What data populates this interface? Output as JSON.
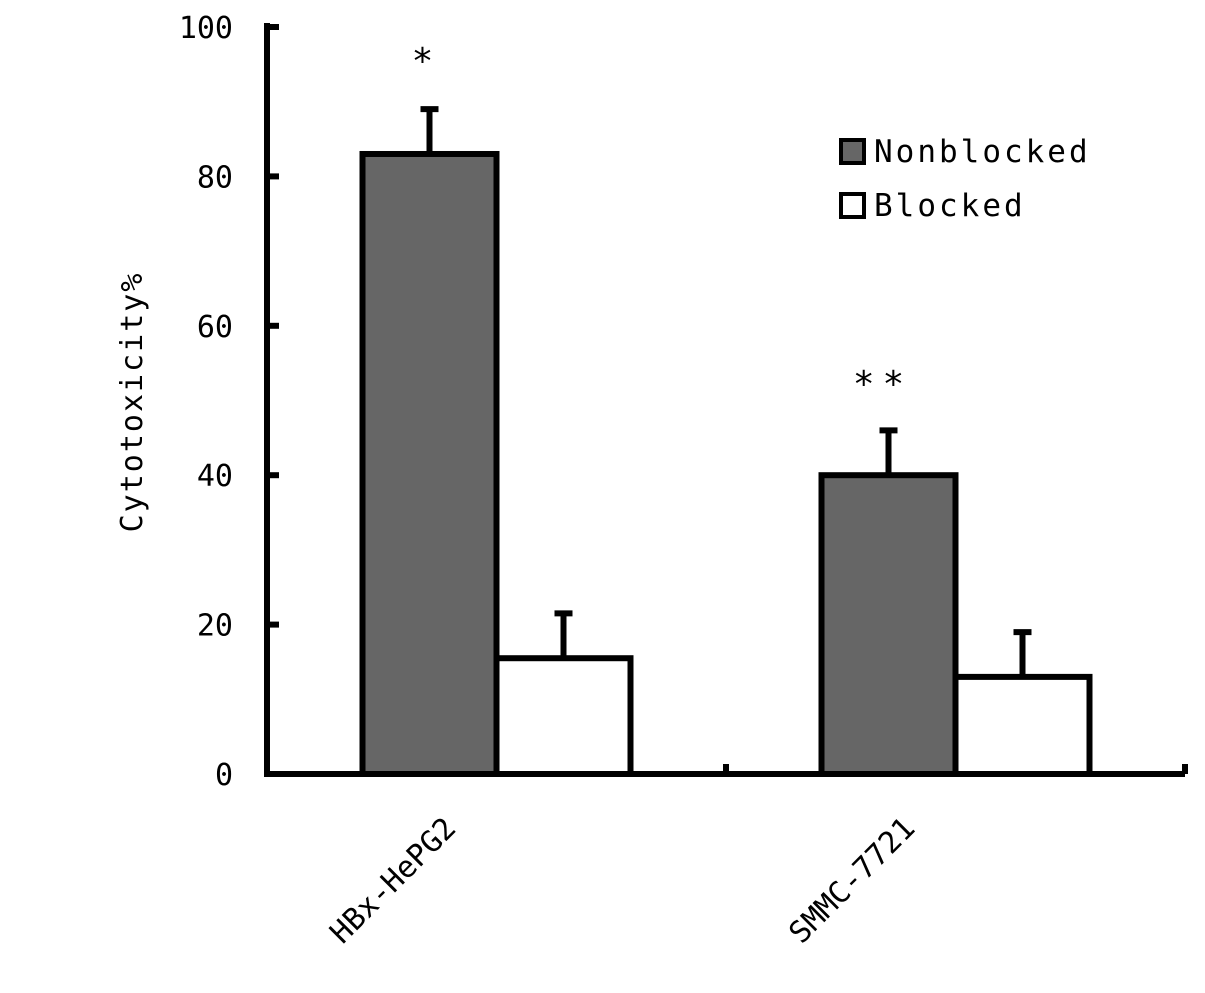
{
  "chart_data": {
    "type": "bar",
    "title": "",
    "xlabel": "",
    "ylabel": "Cytotoxicity%",
    "ylim": [
      0,
      100
    ],
    "yticks": [
      0,
      20,
      40,
      60,
      80,
      100
    ],
    "categories": [
      "HBx-HePG2",
      "SMMC-7721"
    ],
    "series": [
      {
        "name": "Nonblocked",
        "values": [
          83,
          40
        ],
        "errors": [
          6,
          6
        ],
        "color": "#666666"
      },
      {
        "name": "Blocked",
        "values": [
          15.5,
          13
        ],
        "errors": [
          6,
          6
        ],
        "color": "#ffffff"
      }
    ],
    "annotations": [
      "*",
      "**"
    ],
    "legend_position": "top-right",
    "grid": false
  }
}
